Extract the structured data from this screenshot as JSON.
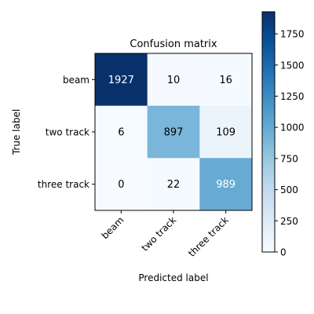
{
  "chart_data": {
    "type": "heatmap",
    "title": "Confusion matrix",
    "xlabel": "Predicted label",
    "ylabel": "True label",
    "x_categories": [
      "beam",
      "two track",
      "three track"
    ],
    "y_categories": [
      "beam",
      "two track",
      "three track"
    ],
    "values": [
      [
        1927,
        10,
        16
      ],
      [
        6,
        897,
        109
      ],
      [
        0,
        22,
        989
      ]
    ],
    "colormap": "Blues",
    "colorbar": {
      "range": [
        0,
        1927
      ],
      "ticks": [
        "0",
        "250",
        "500",
        "750",
        "1000",
        "1250",
        "1500",
        "1750"
      ]
    }
  }
}
